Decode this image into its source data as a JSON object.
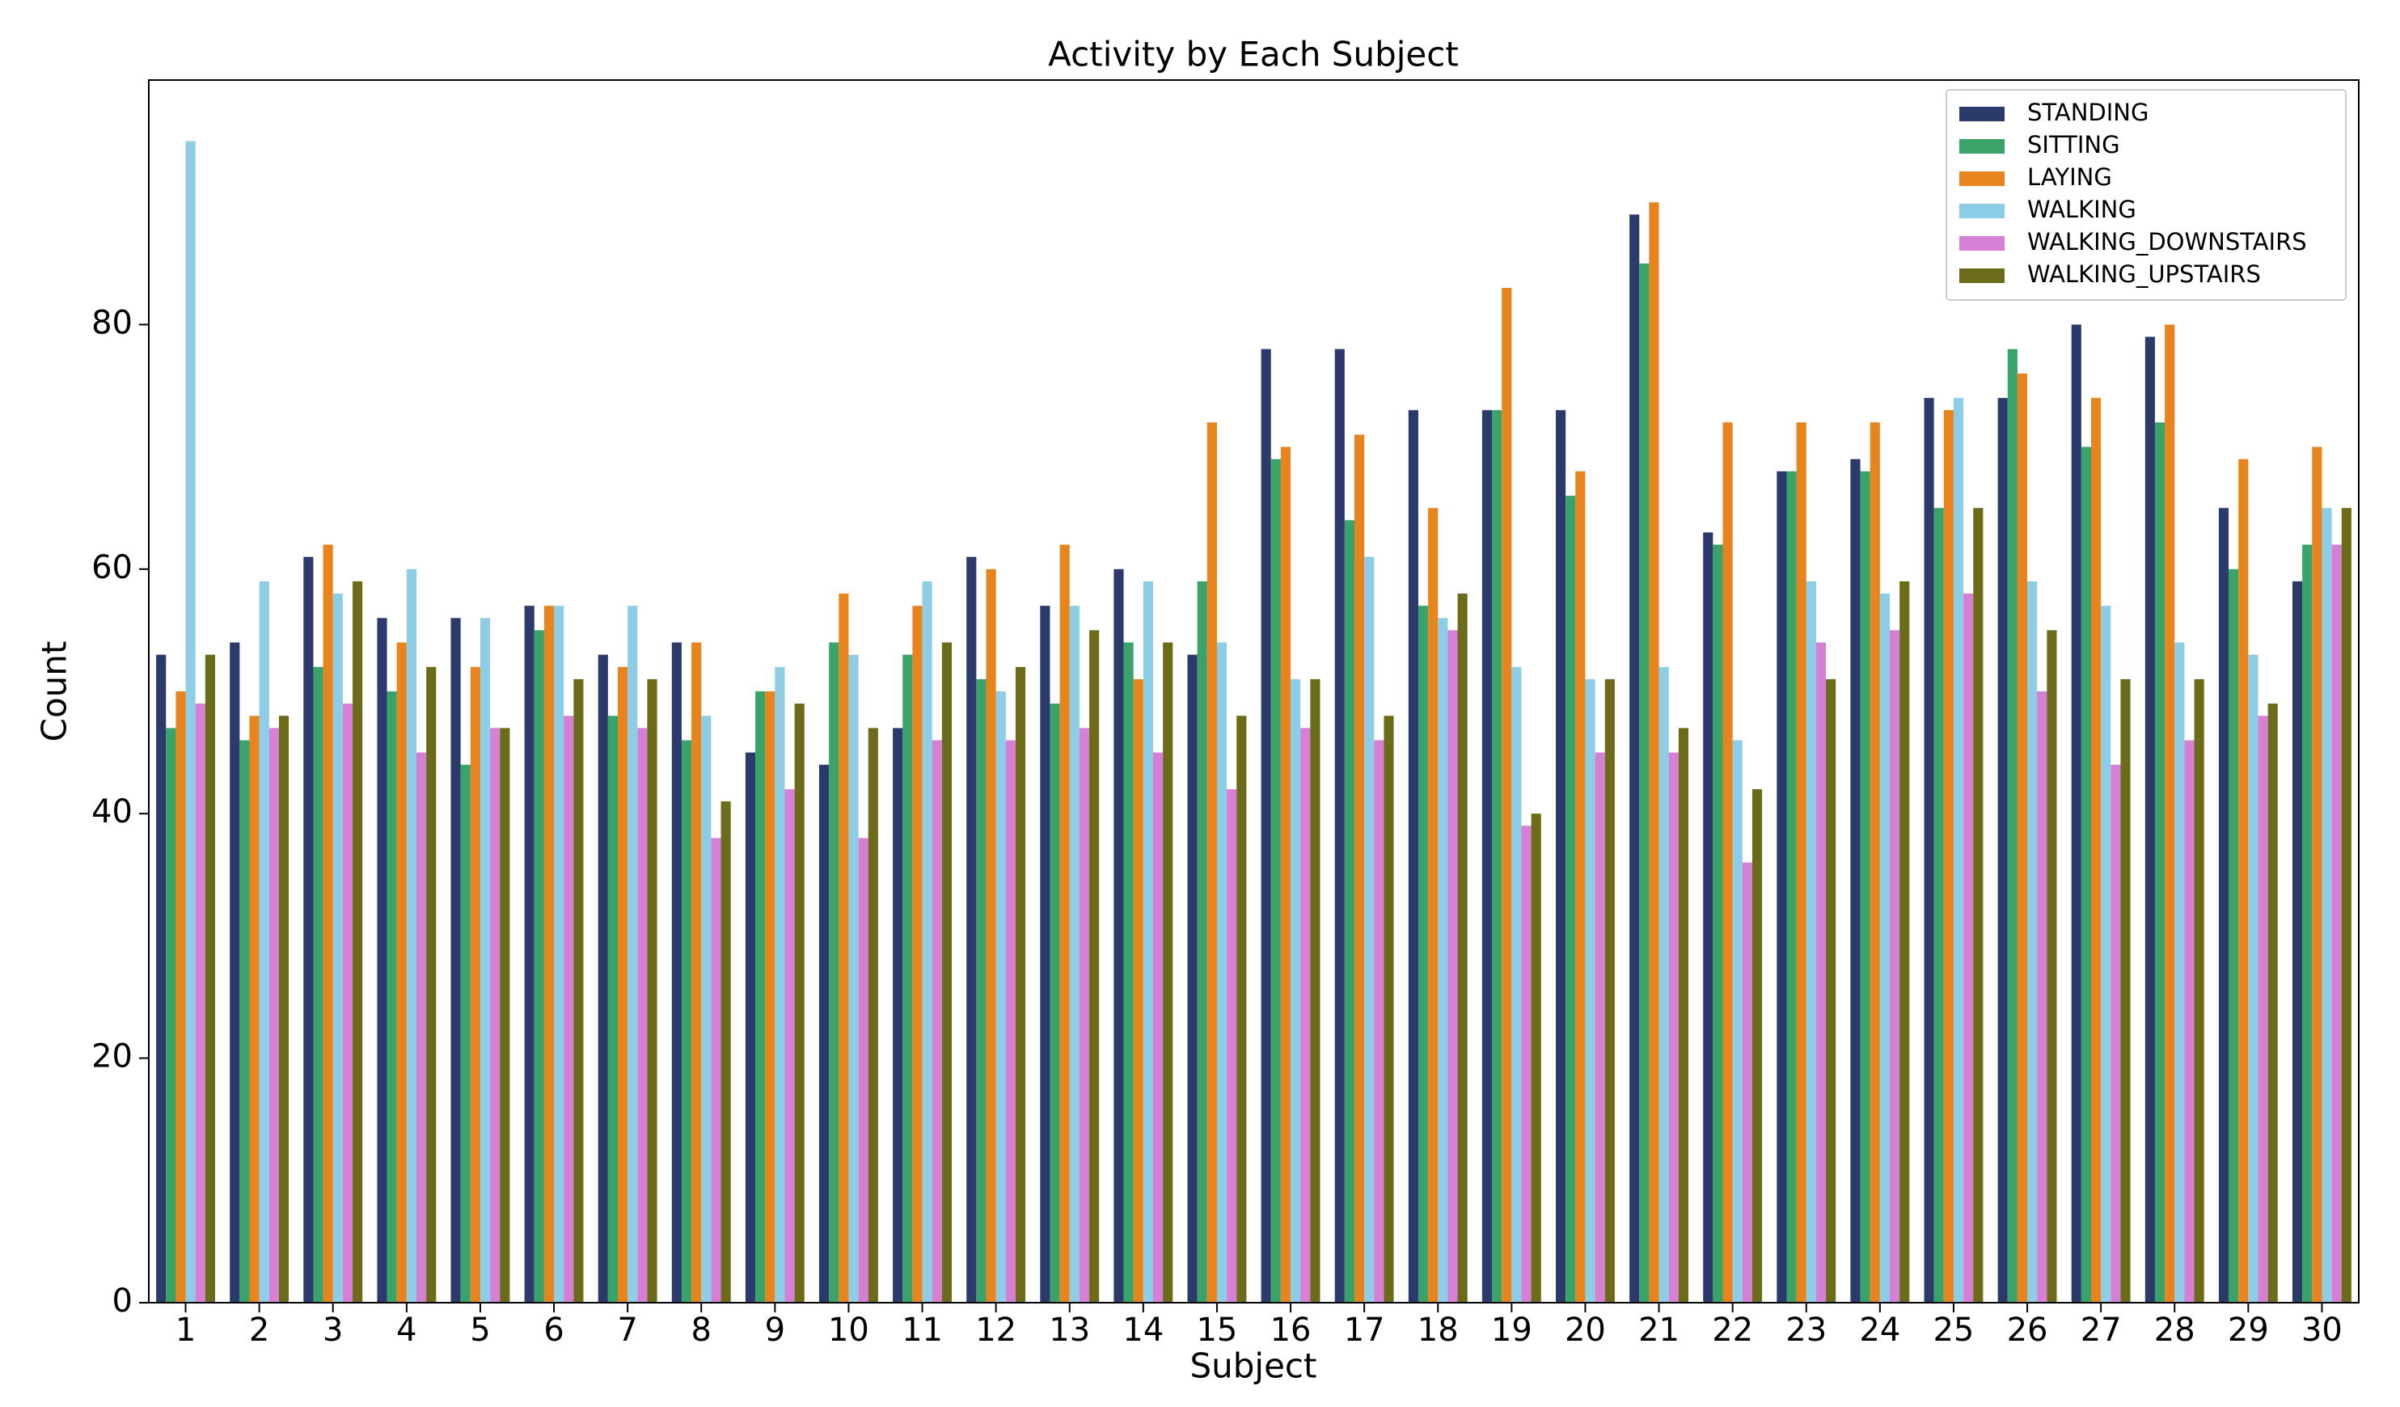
{
  "chart_data": {
    "type": "bar",
    "title": "Activity by Each Subject",
    "x_label": "Subject",
    "y_label": "Count",
    "categories": [
      "1",
      "2",
      "3",
      "4",
      "5",
      "6",
      "7",
      "8",
      "9",
      "10",
      "11",
      "12",
      "13",
      "14",
      "15",
      "16",
      "17",
      "18",
      "19",
      "20",
      "21",
      "22",
      "23",
      "24",
      "25",
      "26",
      "27",
      "28",
      "29",
      "30"
    ],
    "series": [
      {
        "name": "STANDING",
        "color": "#2b3a6b",
        "values": [
          53,
          54,
          61,
          56,
          56,
          57,
          53,
          54,
          45,
          44,
          47,
          61,
          57,
          60,
          53,
          78,
          78,
          73,
          73,
          73,
          89,
          63,
          68,
          69,
          74,
          74,
          80,
          79,
          65,
          59
        ]
      },
      {
        "name": "SITTING",
        "color": "#3aa36a",
        "values": [
          47,
          46,
          52,
          50,
          44,
          55,
          48,
          46,
          50,
          54,
          53,
          51,
          49,
          54,
          59,
          69,
          64,
          57,
          73,
          66,
          85,
          62,
          68,
          68,
          65,
          78,
          70,
          72,
          60,
          62
        ]
      },
      {
        "name": "LAYING",
        "color": "#e8841e",
        "values": [
          50,
          48,
          62,
          54,
          52,
          57,
          52,
          54,
          50,
          58,
          57,
          60,
          62,
          51,
          72,
          70,
          71,
          65,
          83,
          68,
          90,
          72,
          72,
          72,
          73,
          76,
          74,
          80,
          69,
          70
        ]
      },
      {
        "name": "WALKING",
        "color": "#8ecde6",
        "values": [
          95,
          59,
          58,
          60,
          56,
          57,
          57,
          48,
          52,
          53,
          59,
          50,
          57,
          59,
          54,
          51,
          61,
          56,
          52,
          51,
          52,
          46,
          59,
          58,
          74,
          59,
          57,
          54,
          53,
          65
        ]
      },
      {
        "name": "WALKING_DOWNSTAIRS",
        "color": "#d57fd5",
        "values": [
          49,
          47,
          49,
          45,
          47,
          48,
          47,
          38,
          42,
          38,
          46,
          46,
          47,
          45,
          42,
          47,
          46,
          55,
          39,
          45,
          45,
          36,
          54,
          55,
          58,
          50,
          44,
          46,
          48,
          62
        ]
      },
      {
        "name": "WALKING_UPSTAIRS",
        "color": "#6b6b1a",
        "values": [
          53,
          48,
          59,
          52,
          47,
          51,
          51,
          41,
          49,
          47,
          54,
          52,
          55,
          54,
          48,
          51,
          48,
          58,
          40,
          51,
          47,
          42,
          51,
          59,
          65,
          55,
          51,
          51,
          49,
          65
        ]
      }
    ],
    "ylim": [
      0,
      100
    ],
    "yticks": [
      0,
      20,
      40,
      60,
      80
    ],
    "grid": false,
    "legend": "upper right"
  }
}
